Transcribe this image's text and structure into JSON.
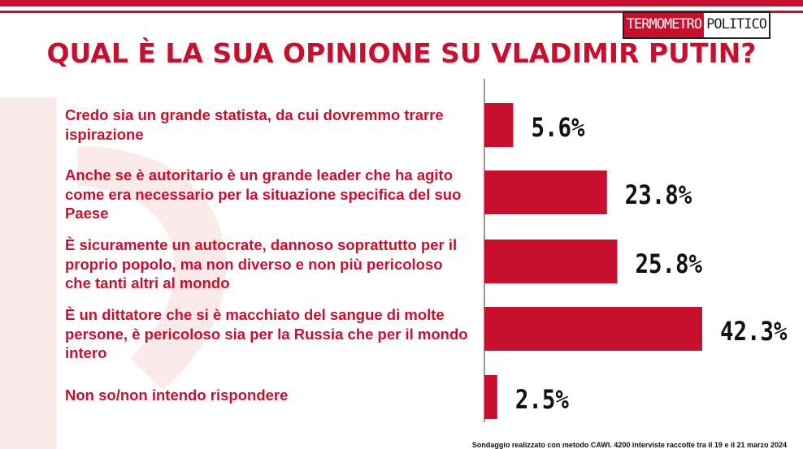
{
  "brand": {
    "part1": "TERMOMETRO",
    "part2": "POLITICO",
    "accent": "#c8102e"
  },
  "title": "QUAL È LA SUA OPINIONE SU VLADIMIR PUTIN?",
  "footnote": "Sondaggio realizzato con metodo CAWI. 4200 interviste raccolte tra il 19 e il 21 marzo 2024",
  "chart_data": {
    "type": "bar",
    "orientation": "horizontal",
    "categories": [
      "Credo sia un grande statista, da cui dovremmo trarre ispirazione",
      "Anche se è autoritario è un grande leader che ha agito come era necessario per la situazione specifica del suo Paese",
      "È sicuramente un autocrate, dannoso soprattutto per il proprio popolo, ma non diverso e non più pericoloso che tanti altri al mondo",
      "È un dittatore che si è macchiato del sangue di molte persone, è pericoloso sia per la Russia che per il mondo intero",
      "Non so/non intendo rispondere"
    ],
    "values": [
      5.6,
      23.8,
      25.8,
      42.3,
      2.5
    ],
    "value_labels": [
      "5.6%",
      "23.8%",
      "25.8%",
      "42.3%",
      "2.5%"
    ],
    "bar_color": "#c8102e",
    "xlim": [
      0,
      50
    ]
  }
}
